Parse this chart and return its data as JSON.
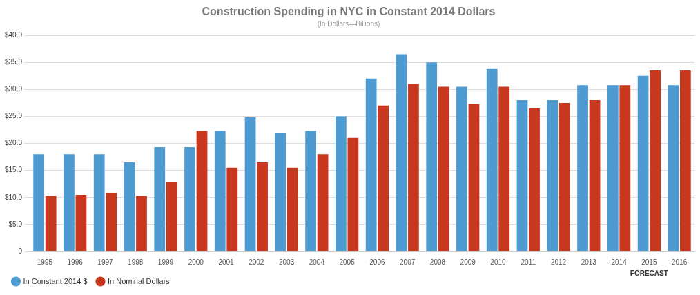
{
  "chart_data": {
    "type": "bar",
    "title": "Construction Spending in NYC in Constant 2014 Dollars",
    "subtitle": "(In Dollars—Billions)",
    "categories": [
      "1995",
      "1996",
      "1997",
      "1998",
      "1999",
      "2000",
      "2001",
      "2002",
      "2003",
      "2004",
      "2005",
      "2006",
      "2007",
      "2008",
      "2009",
      "2010",
      "2011",
      "2012",
      "2013",
      "2014",
      "2015",
      "2016"
    ],
    "series": [
      {
        "name": "In Constant 2014 $",
        "color": "#4e9bd1",
        "values": [
          18,
          18,
          18,
          16.5,
          19.3,
          19.3,
          22.3,
          24.8,
          22,
          22.3,
          25,
          32,
          36.5,
          35,
          30.5,
          33.8,
          28,
          28,
          30.8,
          30.8,
          32.5,
          30.8
        ]
      },
      {
        "name": "In Nominal Dollars",
        "color": "#c8381f",
        "values": [
          10.3,
          10.5,
          10.8,
          10.3,
          12.8,
          22.3,
          15.5,
          16.5,
          15.5,
          18,
          21,
          27,
          31,
          30.5,
          27.3,
          30.5,
          26.5,
          27.5,
          28,
          30.8,
          33.5,
          33.5
        ]
      }
    ],
    "ylim": [
      0,
      40
    ],
    "yticks": [
      {
        "value": 0,
        "label": "0"
      },
      {
        "value": 5,
        "label": "$5.0"
      },
      {
        "value": 10,
        "label": "$10.0"
      },
      {
        "value": 15,
        "label": "$15.0"
      },
      {
        "value": 20,
        "label": "$20.0"
      },
      {
        "value": 25,
        "label": "$25.0"
      },
      {
        "value": 30,
        "label": "$30.0"
      },
      {
        "value": 35,
        "label": "$35.0"
      },
      {
        "value": 40,
        "label": "$40.0"
      }
    ],
    "grid": "y",
    "legend": "bottom left",
    "annotations": [
      "FORECAST"
    ]
  }
}
